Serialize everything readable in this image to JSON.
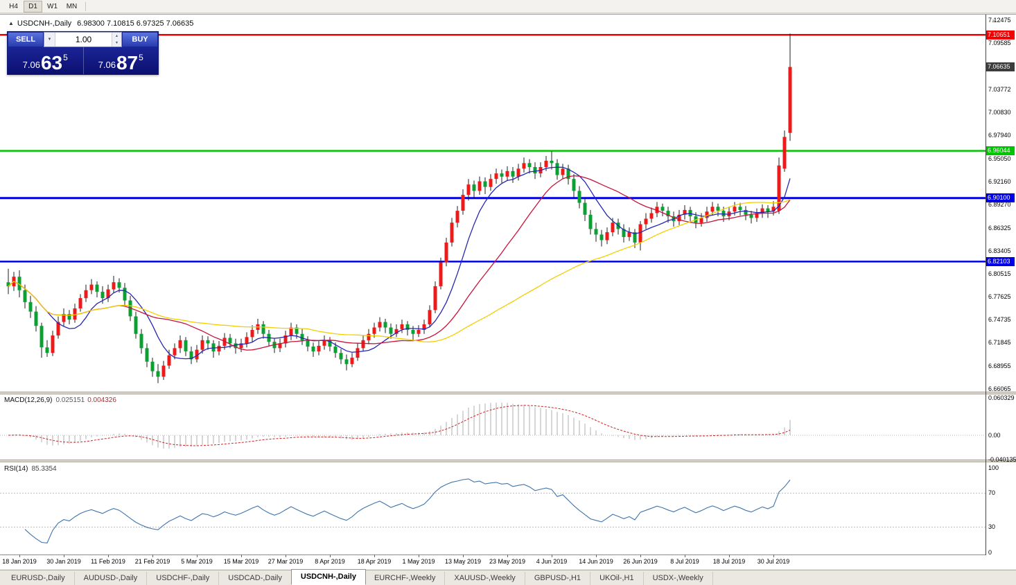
{
  "toolbar": {
    "timeframes": [
      "H4",
      "D1",
      "W1",
      "MN"
    ],
    "active": "D1"
  },
  "chart": {
    "title": {
      "name": "USDCNH-,Daily",
      "ohlc": "6.98300 7.10815 6.97325 7.06635"
    },
    "one_click": {
      "sell_label": "SELL",
      "buy_label": "BUY",
      "volume": "1.00",
      "sell_price": {
        "prefix": "7.06",
        "big": "63",
        "sup": "5"
      },
      "buy_price": {
        "prefix": "7.06",
        "big": "87",
        "sup": "5"
      }
    },
    "price_axis": {
      "gridlines": [
        "7.12475",
        "7.09585",
        "7.03772",
        "7.00830",
        "6.97940",
        "6.95050",
        "6.92160",
        "6.89270",
        "6.86325",
        "6.83405",
        "6.80515",
        "6.77625",
        "6.74735",
        "6.71845",
        "6.68955",
        "6.66065"
      ],
      "current": "7.06635",
      "current_bg": "#3c3c3c"
    }
  },
  "icons": {
    "collapse_arrow": "▲",
    "dropdown": "▼",
    "spin_up": "▲",
    "spin_down": "▼",
    "shift_marker": "▼"
  },
  "chart_data": {
    "type": "candlestick",
    "symbol": "USDCNH",
    "timeframe": "Daily",
    "colors": {
      "up": "#ee1a1a",
      "down": "#0aa132",
      "wick": "#1c1c1c"
    },
    "hlines": [
      {
        "price": 7.10651,
        "label": "7.10651",
        "color": "#f00000",
        "width": 2.5
      },
      {
        "price": 6.96044,
        "label": "6.96044",
        "color": "#00c400",
        "width": 2.5
      },
      {
        "price": 6.901,
        "label": "6.90100",
        "color": "#0000e8",
        "width": 3
      },
      {
        "price": 6.82103,
        "label": "6.82103",
        "color": "#0000e8",
        "width": 2.5
      }
    ],
    "mas": [
      {
        "period": 8,
        "color": "#2426b4"
      },
      {
        "period": 21,
        "color": "#c8123a"
      },
      {
        "period": 55,
        "color": "#f2cf00"
      }
    ],
    "date_labels": [
      {
        "t": "18 Jan 2019",
        "i": 2
      },
      {
        "t": "30 Jan 2019",
        "i": 10
      },
      {
        "t": "11 Feb 2019",
        "i": 18
      },
      {
        "t": "21 Feb 2019",
        "i": 26
      },
      {
        "t": "5 Mar 2019",
        "i": 34
      },
      {
        "t": "15 Mar 2019",
        "i": 42
      },
      {
        "t": "27 Mar 2019",
        "i": 50
      },
      {
        "t": "8 Apr 2019",
        "i": 58
      },
      {
        "t": "18 Apr 2019",
        "i": 66
      },
      {
        "t": "1 May 2019",
        "i": 74
      },
      {
        "t": "13 May 2019",
        "i": 82
      },
      {
        "t": "23 May 2019",
        "i": 90
      },
      {
        "t": "4 Jun 2019",
        "i": 98
      },
      {
        "t": "14 Jun 2019",
        "i": 106
      },
      {
        "t": "26 Jun 2019",
        "i": 114
      },
      {
        "t": "8 Jul 2019",
        "i": 122
      },
      {
        "t": "18 Jul 2019",
        "i": 130
      },
      {
        "t": "30 Jul 2019",
        "i": 138
      }
    ],
    "candles": [
      [
        6.795,
        6.812,
        6.78,
        6.79
      ],
      [
        6.79,
        6.808,
        6.784,
        6.802
      ],
      [
        6.802,
        6.81,
        6.776,
        6.785
      ],
      [
        6.785,
        6.792,
        6.762,
        6.77
      ],
      [
        6.77,
        6.778,
        6.75,
        6.758
      ],
      [
        6.758,
        6.765,
        6.733,
        6.74
      ],
      [
        6.74,
        6.744,
        6.7,
        6.713
      ],
      [
        6.713,
        6.722,
        6.701,
        6.706
      ],
      [
        6.706,
        6.734,
        6.702,
        6.728
      ],
      [
        6.728,
        6.752,
        6.724,
        6.745
      ],
      [
        6.745,
        6.762,
        6.74,
        6.755
      ],
      [
        6.755,
        6.76,
        6.742,
        6.748
      ],
      [
        6.748,
        6.768,
        6.744,
        6.762
      ],
      [
        6.762,
        6.78,
        6.758,
        6.775
      ],
      [
        6.775,
        6.792,
        6.77,
        6.785
      ],
      [
        6.785,
        6.799,
        6.78,
        6.792
      ],
      [
        6.792,
        6.796,
        6.776,
        6.783
      ],
      [
        6.783,
        6.79,
        6.768,
        6.775
      ],
      [
        6.775,
        6.792,
        6.77,
        6.786
      ],
      [
        6.786,
        6.803,
        6.782,
        6.795
      ],
      [
        6.795,
        6.8,
        6.782,
        6.788
      ],
      [
        6.788,
        6.794,
        6.766,
        6.772
      ],
      [
        6.772,
        6.778,
        6.746,
        6.752
      ],
      [
        6.752,
        6.758,
        6.724,
        6.73
      ],
      [
        6.73,
        6.736,
        6.705,
        6.712
      ],
      [
        6.712,
        6.718,
        6.688,
        6.695
      ],
      [
        6.695,
        6.7,
        6.676,
        6.683
      ],
      [
        6.683,
        6.692,
        6.668,
        6.676
      ],
      [
        6.676,
        6.696,
        6.672,
        6.69
      ],
      [
        6.69,
        6.71,
        6.686,
        6.703
      ],
      [
        6.703,
        6.718,
        6.698,
        6.712
      ],
      [
        6.712,
        6.728,
        6.706,
        6.722
      ],
      [
        6.722,
        6.726,
        6.702,
        6.708
      ],
      [
        6.708,
        6.714,
        6.692,
        6.698
      ],
      [
        6.698,
        6.716,
        6.694,
        6.71
      ],
      [
        6.71,
        6.728,
        6.705,
        6.722
      ],
      [
        6.722,
        6.727,
        6.71,
        6.718
      ],
      [
        6.718,
        6.722,
        6.7,
        6.708
      ],
      [
        6.708,
        6.721,
        6.703,
        6.715
      ],
      [
        6.715,
        6.731,
        6.71,
        6.725
      ],
      [
        6.725,
        6.73,
        6.712,
        6.718
      ],
      [
        6.718,
        6.724,
        6.705,
        6.712
      ],
      [
        6.712,
        6.724,
        6.707,
        6.718
      ],
      [
        6.718,
        6.732,
        6.713,
        6.726
      ],
      [
        6.726,
        6.741,
        6.72,
        6.735
      ],
      [
        6.735,
        6.749,
        6.73,
        6.742
      ],
      [
        6.742,
        6.746,
        6.724,
        6.73
      ],
      [
        6.73,
        6.735,
        6.714,
        6.72
      ],
      [
        6.72,
        6.725,
        6.706,
        6.712
      ],
      [
        6.712,
        6.724,
        6.707,
        6.718
      ],
      [
        6.718,
        6.734,
        6.713,
        6.728
      ],
      [
        6.728,
        6.744,
        6.722,
        6.738
      ],
      [
        6.738,
        6.742,
        6.724,
        6.73
      ],
      [
        6.73,
        6.736,
        6.716,
        6.722
      ],
      [
        6.722,
        6.727,
        6.708,
        6.714
      ],
      [
        6.714,
        6.719,
        6.701,
        6.708
      ],
      [
        6.708,
        6.721,
        6.703,
        6.715
      ],
      [
        6.715,
        6.728,
        6.71,
        6.722
      ],
      [
        6.722,
        6.726,
        6.708,
        6.714
      ],
      [
        6.714,
        6.719,
        6.7,
        6.706
      ],
      [
        6.706,
        6.711,
        6.692,
        6.698
      ],
      [
        6.698,
        6.704,
        6.684,
        6.692
      ],
      [
        6.692,
        6.706,
        6.688,
        6.7
      ],
      [
        6.7,
        6.718,
        6.696,
        6.712
      ],
      [
        6.712,
        6.728,
        6.708,
        6.722
      ],
      [
        6.722,
        6.736,
        6.717,
        6.73
      ],
      [
        6.73,
        6.744,
        6.725,
        6.738
      ],
      [
        6.738,
        6.751,
        6.733,
        6.745
      ],
      [
        6.745,
        6.749,
        6.731,
        6.738
      ],
      [
        6.738,
        6.743,
        6.724,
        6.73
      ],
      [
        6.73,
        6.742,
        6.726,
        6.736
      ],
      [
        6.736,
        6.748,
        6.731,
        6.742
      ],
      [
        6.742,
        6.746,
        6.728,
        6.735
      ],
      [
        6.735,
        6.74,
        6.722,
        6.73
      ],
      [
        6.73,
        6.741,
        6.726,
        6.735
      ],
      [
        6.735,
        6.748,
        6.73,
        6.742
      ],
      [
        6.742,
        6.766,
        6.738,
        6.76
      ],
      [
        6.76,
        6.796,
        6.756,
        6.79
      ],
      [
        6.79,
        6.826,
        6.786,
        6.82
      ],
      [
        6.82,
        6.851,
        6.815,
        6.845
      ],
      [
        6.845,
        6.876,
        6.84,
        6.87
      ],
      [
        6.87,
        6.891,
        6.864,
        6.885
      ],
      [
        6.885,
        6.912,
        6.88,
        6.905
      ],
      [
        6.905,
        6.925,
        6.898,
        6.918
      ],
      [
        6.918,
        6.923,
        6.9,
        6.91
      ],
      [
        6.91,
        6.928,
        6.905,
        6.922
      ],
      [
        6.922,
        6.927,
        6.906,
        6.915
      ],
      [
        6.915,
        6.931,
        6.91,
        6.925
      ],
      [
        6.925,
        6.938,
        6.919,
        6.932
      ],
      [
        6.932,
        6.937,
        6.92,
        6.928
      ],
      [
        6.928,
        6.941,
        6.923,
        6.935
      ],
      [
        6.935,
        6.94,
        6.92,
        6.928
      ],
      [
        6.928,
        6.944,
        6.923,
        6.938
      ],
      [
        6.938,
        6.952,
        6.933,
        6.945
      ],
      [
        6.945,
        6.95,
        6.932,
        6.94
      ],
      [
        6.94,
        6.946,
        6.925,
        6.932
      ],
      [
        6.932,
        6.946,
        6.927,
        6.94
      ],
      [
        6.94,
        6.954,
        6.935,
        6.948
      ],
      [
        6.948,
        6.96,
        6.937,
        6.945
      ],
      [
        6.945,
        6.95,
        6.924,
        6.93
      ],
      [
        6.93,
        6.944,
        6.925,
        6.938
      ],
      [
        6.938,
        6.943,
        6.918,
        6.925
      ],
      [
        6.925,
        6.931,
        6.902,
        6.91
      ],
      [
        6.91,
        6.916,
        6.888,
        6.895
      ],
      [
        6.895,
        6.901,
        6.872,
        6.88
      ],
      [
        6.88,
        6.886,
        6.855,
        6.862
      ],
      [
        6.862,
        6.87,
        6.846,
        6.855
      ],
      [
        6.855,
        6.861,
        6.84,
        6.848
      ],
      [
        6.848,
        6.864,
        6.843,
        6.858
      ],
      [
        6.858,
        6.876,
        6.853,
        6.87
      ],
      [
        6.87,
        6.875,
        6.855,
        6.862
      ],
      [
        6.862,
        6.868,
        6.845,
        6.852
      ],
      [
        6.852,
        6.864,
        6.847,
        6.858
      ],
      [
        6.858,
        6.862,
        6.838,
        6.845
      ],
      [
        6.845,
        6.872,
        6.835,
        6.868
      ],
      [
        6.868,
        6.882,
        6.862,
        6.875
      ],
      [
        6.875,
        6.889,
        6.87,
        6.882
      ],
      [
        6.882,
        6.896,
        6.877,
        6.89
      ],
      [
        6.89,
        6.894,
        6.878,
        6.885
      ],
      [
        6.885,
        6.89,
        6.87,
        6.878
      ],
      [
        6.878,
        6.884,
        6.865,
        6.872
      ],
      [
        6.872,
        6.886,
        6.867,
        6.88
      ],
      [
        6.88,
        6.892,
        6.874,
        6.886
      ],
      [
        6.886,
        6.89,
        6.871,
        6.878
      ],
      [
        6.878,
        6.883,
        6.863,
        6.87
      ],
      [
        6.87,
        6.882,
        6.865,
        6.876
      ],
      [
        6.876,
        6.89,
        6.871,
        6.884
      ],
      [
        6.884,
        6.896,
        6.879,
        6.89
      ],
      [
        6.89,
        6.894,
        6.878,
        6.885
      ],
      [
        6.885,
        6.89,
        6.871,
        6.878
      ],
      [
        6.878,
        6.89,
        6.873,
        6.884
      ],
      [
        6.884,
        6.896,
        6.879,
        6.89
      ],
      [
        6.89,
        6.895,
        6.879,
        6.886
      ],
      [
        6.886,
        6.891,
        6.873,
        6.88
      ],
      [
        6.88,
        6.885,
        6.869,
        6.876
      ],
      [
        6.876,
        6.888,
        6.871,
        6.882
      ],
      [
        6.882,
        6.893,
        6.876,
        6.888
      ],
      [
        6.888,
        6.892,
        6.876,
        6.884
      ],
      [
        6.884,
        6.897,
        6.879,
        6.89
      ],
      [
        6.885,
        6.952,
        6.881,
        6.942
      ],
      [
        6.938,
        6.986,
        6.934,
        6.978
      ],
      [
        6.983,
        7.108,
        6.973,
        7.066
      ]
    ]
  },
  "panes": {
    "macd": {
      "name": "MACD(12,26,9)",
      "value_main": "0.025151",
      "value_signal": "0.004326",
      "fast": 12,
      "slow": 26,
      "signal": 9,
      "axis": [
        {
          "t": "0.060329",
          "v": 0.060329
        },
        {
          "t": "0.00",
          "v": 0
        },
        {
          "t": "-0.040135",
          "v": -0.040135
        }
      ],
      "histogram_color": "#c6c6c6",
      "signal_color": "#cc2222"
    },
    "rsi": {
      "name": "RSI(14)",
      "value": "85.3354",
      "period": 14,
      "levels": [
        70,
        30
      ],
      "axis": [
        {
          "t": "100",
          "v": 100
        },
        {
          "t": "70",
          "v": 70
        },
        {
          "t": "30",
          "v": 30
        },
        {
          "t": "0",
          "v": 0
        }
      ],
      "line_color": "#3f74ad"
    }
  },
  "bottom_tabs": {
    "active_index": 4,
    "items": [
      {
        "label": "EURUSD-,Daily"
      },
      {
        "label": "AUDUSD-,Daily"
      },
      {
        "label": "USDCHF-,Daily"
      },
      {
        "label": "USDCAD-,Daily"
      },
      {
        "label": "USDCNH-,Daily"
      },
      {
        "label": "EURCHF-,Weekly"
      },
      {
        "label": "XAUUSD-,Weekly"
      },
      {
        "label": "GBPUSD-,H1"
      },
      {
        "label": "UKOil-,H1"
      },
      {
        "label": "USDX-,Weekly"
      }
    ]
  }
}
